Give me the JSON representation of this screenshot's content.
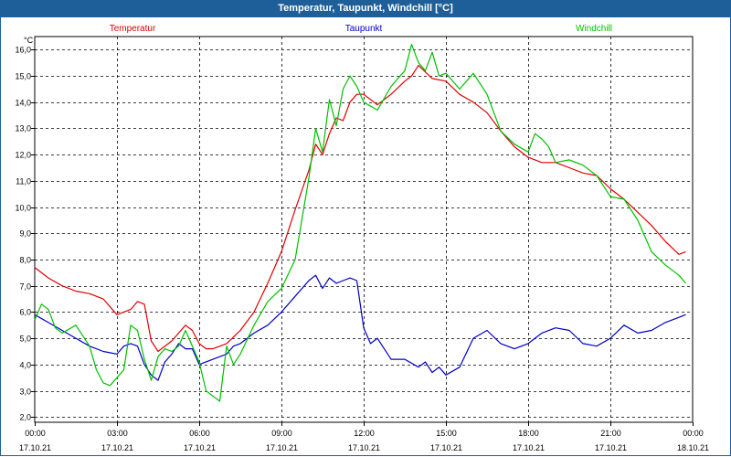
{
  "window": {
    "title": "Temperatur, Taupunkt, Windchill [°C]"
  },
  "chart_data": {
    "type": "line",
    "title": "Temperatur, Taupunkt, Windchill [°C]",
    "ylabel": "°C",
    "xlabel": "",
    "ylim": [
      1.8,
      16.5
    ],
    "xlim_hours": [
      0,
      24
    ],
    "grid": true,
    "legend_placement": "top",
    "y_ticks": [
      "2,0",
      "3,0",
      "4,0",
      "5,0",
      "6,0",
      "7,0",
      "8,0",
      "9,0",
      "10,0",
      "11,0",
      "12,0",
      "13,0",
      "14,0",
      "15,0",
      "16,0"
    ],
    "x_ticks": [
      {
        "time": "00:00",
        "date": "17.10.21"
      },
      {
        "time": "03:00",
        "date": "17.10.21"
      },
      {
        "time": "06:00",
        "date": "17.10.21"
      },
      {
        "time": "09:00",
        "date": "17.10.21"
      },
      {
        "time": "12:00",
        "date": "17.10.21"
      },
      {
        "time": "15:00",
        "date": "17.10.21"
      },
      {
        "time": "18:00",
        "date": "17.10.21"
      },
      {
        "time": "21:00",
        "date": "17.10.21"
      },
      {
        "time": "00:00",
        "date": "18.10.21"
      }
    ],
    "series": [
      {
        "name": "Temperatur",
        "color": "#e00000",
        "x": [
          0,
          0.5,
          1,
          1.5,
          2,
          2.5,
          2.75,
          3,
          3.5,
          3.75,
          4,
          4.25,
          4.5,
          5,
          5.25,
          5.5,
          5.75,
          6,
          6.25,
          6.5,
          7,
          7.5,
          8,
          8.5,
          9,
          9.5,
          10,
          10.25,
          10.5,
          10.75,
          11,
          11.25,
          11.5,
          11.75,
          12,
          12.5,
          13,
          13.5,
          13.75,
          14,
          14.5,
          15,
          15.5,
          16,
          16.5,
          17,
          17.5,
          18,
          18.5,
          19,
          19.5,
          20,
          20.5,
          21,
          21.5,
          22,
          22.5,
          23,
          23.5,
          23.75
        ],
        "values": [
          7.7,
          7.3,
          7.0,
          6.8,
          6.7,
          6.5,
          6.2,
          5.9,
          6.1,
          6.4,
          6.3,
          4.9,
          4.5,
          4.9,
          5.2,
          5.5,
          5.3,
          4.8,
          4.6,
          4.6,
          4.8,
          5.3,
          6.0,
          7.1,
          8.3,
          9.9,
          11.4,
          12.4,
          12.0,
          12.8,
          13.4,
          13.3,
          14.0,
          14.3,
          14.3,
          13.9,
          14.3,
          14.8,
          15.0,
          15.4,
          14.9,
          14.8,
          14.3,
          14.0,
          13.6,
          12.9,
          12.3,
          11.9,
          11.7,
          11.7,
          11.5,
          11.3,
          11.2,
          10.7,
          10.3,
          9.8,
          9.3,
          8.7,
          8.2,
          8.3
        ]
      },
      {
        "name": "Taupunkt",
        "color": "#0000c8",
        "x": [
          0,
          0.5,
          1,
          1.5,
          2,
          2.5,
          3,
          3.25,
          3.5,
          3.75,
          4,
          4.25,
          4.5,
          4.75,
          5,
          5.25,
          5.5,
          5.75,
          6,
          6.5,
          7,
          7.25,
          7.5,
          8,
          8.5,
          9,
          9.5,
          10,
          10.25,
          10.5,
          10.75,
          11,
          11.25,
          11.5,
          11.75,
          12,
          12.25,
          12.5,
          13,
          13.5,
          14,
          14.25,
          14.5,
          14.75,
          15,
          15.5,
          16,
          16.5,
          17,
          17.5,
          18,
          18.5,
          19,
          19.5,
          20,
          20.5,
          21,
          21.5,
          22,
          22.5,
          23,
          23.5,
          23.75
        ],
        "values": [
          5.9,
          5.6,
          5.3,
          5.0,
          4.7,
          4.5,
          4.4,
          4.7,
          4.8,
          4.7,
          4.0,
          3.6,
          3.4,
          4.1,
          4.4,
          4.8,
          4.6,
          4.6,
          4.0,
          4.2,
          4.4,
          4.7,
          4.8,
          5.2,
          5.5,
          6.0,
          6.6,
          7.2,
          7.4,
          6.9,
          7.3,
          7.1,
          7.2,
          7.3,
          7.2,
          5.4,
          4.8,
          5.0,
          4.2,
          4.2,
          3.9,
          4.1,
          3.7,
          3.9,
          3.6,
          3.9,
          5.0,
          5.3,
          4.8,
          4.6,
          4.8,
          5.2,
          5.4,
          5.3,
          4.8,
          4.7,
          5.0,
          5.5,
          5.2,
          5.3,
          5.6,
          5.8,
          5.9
        ]
      },
      {
        "name": "Windchill",
        "color": "#00c000",
        "x": [
          0,
          0.25,
          0.5,
          0.75,
          1,
          1.5,
          2,
          2.25,
          2.5,
          2.75,
          3,
          3.25,
          3.5,
          3.75,
          4,
          4.25,
          4.5,
          4.75,
          5,
          5.25,
          5.5,
          5.75,
          6,
          6.25,
          6.5,
          6.75,
          7,
          7.25,
          7.5,
          8,
          8.5,
          9,
          9.5,
          10,
          10.25,
          10.5,
          10.75,
          11,
          11.25,
          11.5,
          11.75,
          12,
          12.5,
          13,
          13.5,
          13.75,
          14,
          14.25,
          14.5,
          14.75,
          15,
          15.5,
          16,
          16.5,
          17,
          17.5,
          18,
          18.25,
          18.5,
          18.75,
          19,
          19.5,
          20,
          20.5,
          21,
          21.5,
          22,
          22.5,
          23,
          23.5,
          23.75
        ],
        "values": [
          5.7,
          6.3,
          6.1,
          5.4,
          5.2,
          5.5,
          4.7,
          3.8,
          3.3,
          3.2,
          3.5,
          3.8,
          5.5,
          5.3,
          4.2,
          3.4,
          4.3,
          4.6,
          4.5,
          4.7,
          5.3,
          4.7,
          4.1,
          3.0,
          2.8,
          2.6,
          4.7,
          4.0,
          4.4,
          5.5,
          6.4,
          6.9,
          8.0,
          11.1,
          13.0,
          12.1,
          14.1,
          13.1,
          14.5,
          15.0,
          14.6,
          14.0,
          13.7,
          14.6,
          15.2,
          16.2,
          15.5,
          15.2,
          15.9,
          15.0,
          15.1,
          14.5,
          15.1,
          14.3,
          12.9,
          12.4,
          12.1,
          12.8,
          12.6,
          12.3,
          11.7,
          11.8,
          11.6,
          11.2,
          10.4,
          10.3,
          9.5,
          8.3,
          7.8,
          7.4,
          7.1
        ]
      }
    ]
  }
}
